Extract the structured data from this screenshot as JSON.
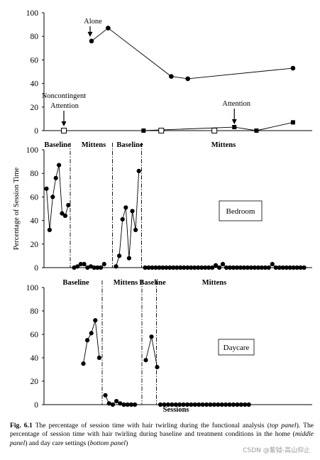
{
  "chart_data": [
    {
      "type": "line",
      "panel": "top",
      "ylim": [
        0,
        100
      ],
      "yticks": [
        0,
        20,
        40,
        60,
        80,
        100
      ],
      "xlim": [
        0,
        14
      ],
      "series": [
        {
          "name": "Alone",
          "marker": "filled-circle",
          "points": [
            [
              1.25,
              76
            ],
            [
              2.0,
              87
            ],
            [
              4.85,
              46
            ],
            [
              5.6,
              44
            ],
            [
              10.35,
              53
            ]
          ]
        },
        {
          "name": "Attention",
          "marker": "filled-square",
          "points": [
            [
              3.6,
              0
            ],
            [
              7.7,
              3
            ],
            [
              8.7,
              0
            ],
            [
              10.35,
              7
            ]
          ]
        },
        {
          "name": "Noncontingent Attention",
          "marker": "open-square",
          "points": [
            [
              0.0,
              0
            ],
            [
              4.4,
              0
            ],
            [
              6.8,
              0
            ]
          ]
        }
      ],
      "annotations": [
        {
          "label": "Alone",
          "arrow_to": [
            1.25,
            76
          ]
        },
        {
          "label": "Noncontingent\nAttention",
          "arrow_to": [
            0.0,
            0
          ]
        },
        {
          "label": "Attention",
          "arrow_to": [
            7.7,
            3
          ]
        }
      ]
    },
    {
      "type": "line",
      "panel": "middle",
      "ylabel": "Percentage of Session Time",
      "ylim": [
        0,
        100
      ],
      "yticks": [
        0,
        20,
        40,
        60,
        80,
        100
      ],
      "label_box": "Bedroom",
      "phases": [
        "Baseline",
        "Mittens",
        "Baseline",
        "Mittens"
      ],
      "segments": [
        [
          67,
          32,
          60,
          76,
          87,
          46,
          44,
          53
        ],
        [
          0,
          1,
          3,
          3,
          0,
          1,
          0,
          0,
          0,
          3
        ],
        [
          1,
          10,
          41,
          51,
          8,
          48,
          32,
          82
        ],
        [
          0,
          0,
          0,
          0,
          0,
          0,
          0,
          0,
          0,
          0,
          0,
          0,
          0,
          0,
          0,
          0,
          0,
          0,
          0,
          0,
          2,
          0,
          3,
          0,
          0,
          0,
          0,
          0,
          0,
          0,
          0,
          0,
          0,
          0,
          0,
          0,
          3,
          0,
          0,
          0,
          0,
          0,
          0,
          0,
          0,
          0
        ]
      ]
    },
    {
      "type": "line",
      "panel": "bottom",
      "xlabel": "Sessions",
      "ylim": [
        0,
        100
      ],
      "yticks": [
        0,
        20,
        40,
        60,
        80,
        100
      ],
      "label_box": "Daycare",
      "phases": [
        "Baseline",
        "Mittens",
        "Baseline",
        "Mittens"
      ],
      "segments": [
        [
          35,
          55,
          61,
          72,
          40
        ],
        [
          8,
          1,
          0,
          3,
          1,
          0,
          0,
          0,
          0
        ],
        [
          38,
          58,
          32
        ],
        [
          0,
          0,
          0,
          0,
          0,
          0,
          0,
          0,
          0,
          0,
          0,
          0,
          0,
          0,
          0,
          0,
          0,
          0,
          0,
          0,
          0,
          0,
          0,
          0
        ]
      ]
    }
  ],
  "caption": {
    "label": "Fig. 6.1",
    "text_1": " The percentage of session time with hair twirling during the functional analysis (",
    "top_panel": "top panel",
    "text_2": "). The percentage of session time with hair twirling during baseline and treatment conditions in the home (",
    "middle_panel": "middle panel",
    "text_3": ") and day care settings (",
    "bottom_panel": "bottom panel",
    "text_4": ")"
  },
  "watermark": "CSDN @紫钺-高山仰止"
}
